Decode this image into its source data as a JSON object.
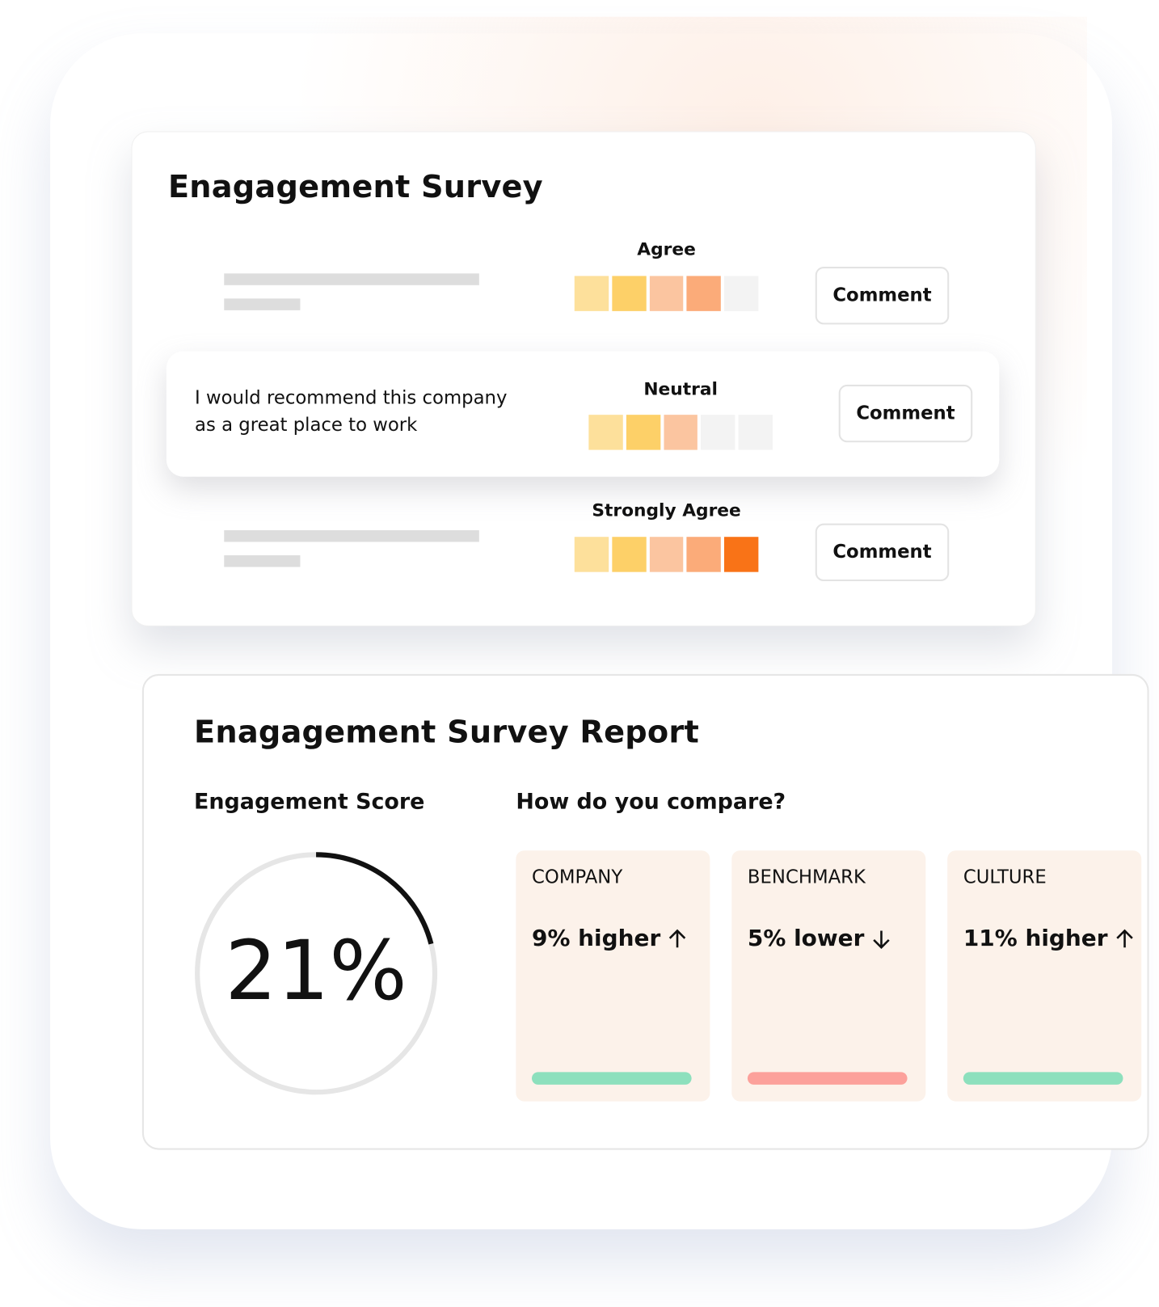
{
  "survey": {
    "title": "Enagagement Survey",
    "scale_colors": [
      "#fde09b",
      "#fdd068",
      "#fbc5a0",
      "#fbab79",
      "#f97317"
    ],
    "empty_color": "#f3f3f3",
    "rows": [
      {
        "answer": "Agree",
        "rating": 4,
        "button": "Comment"
      },
      {
        "question": "I would recommend this company as a great place to work",
        "answer": "Neutral",
        "rating": 3,
        "button": "Comment"
      },
      {
        "answer": "Strongly Agree",
        "rating": 5,
        "button": "Comment"
      }
    ]
  },
  "report": {
    "title": "Enagagement Survey Report",
    "score_heading": "Engagement Score",
    "score": {
      "value": 21,
      "label": "21%"
    },
    "compare_heading": "How do you compare?",
    "cards": [
      {
        "name": "COMPANY",
        "result": "9% higher",
        "trend": "up",
        "color": "#8de0bd"
      },
      {
        "name": "BENCHMARK",
        "result": "5% lower",
        "trend": "down",
        "color": "#fca19b"
      },
      {
        "name": "CULTURE",
        "result": "11% higher",
        "trend": "up",
        "color": "#8de0bd"
      }
    ]
  }
}
